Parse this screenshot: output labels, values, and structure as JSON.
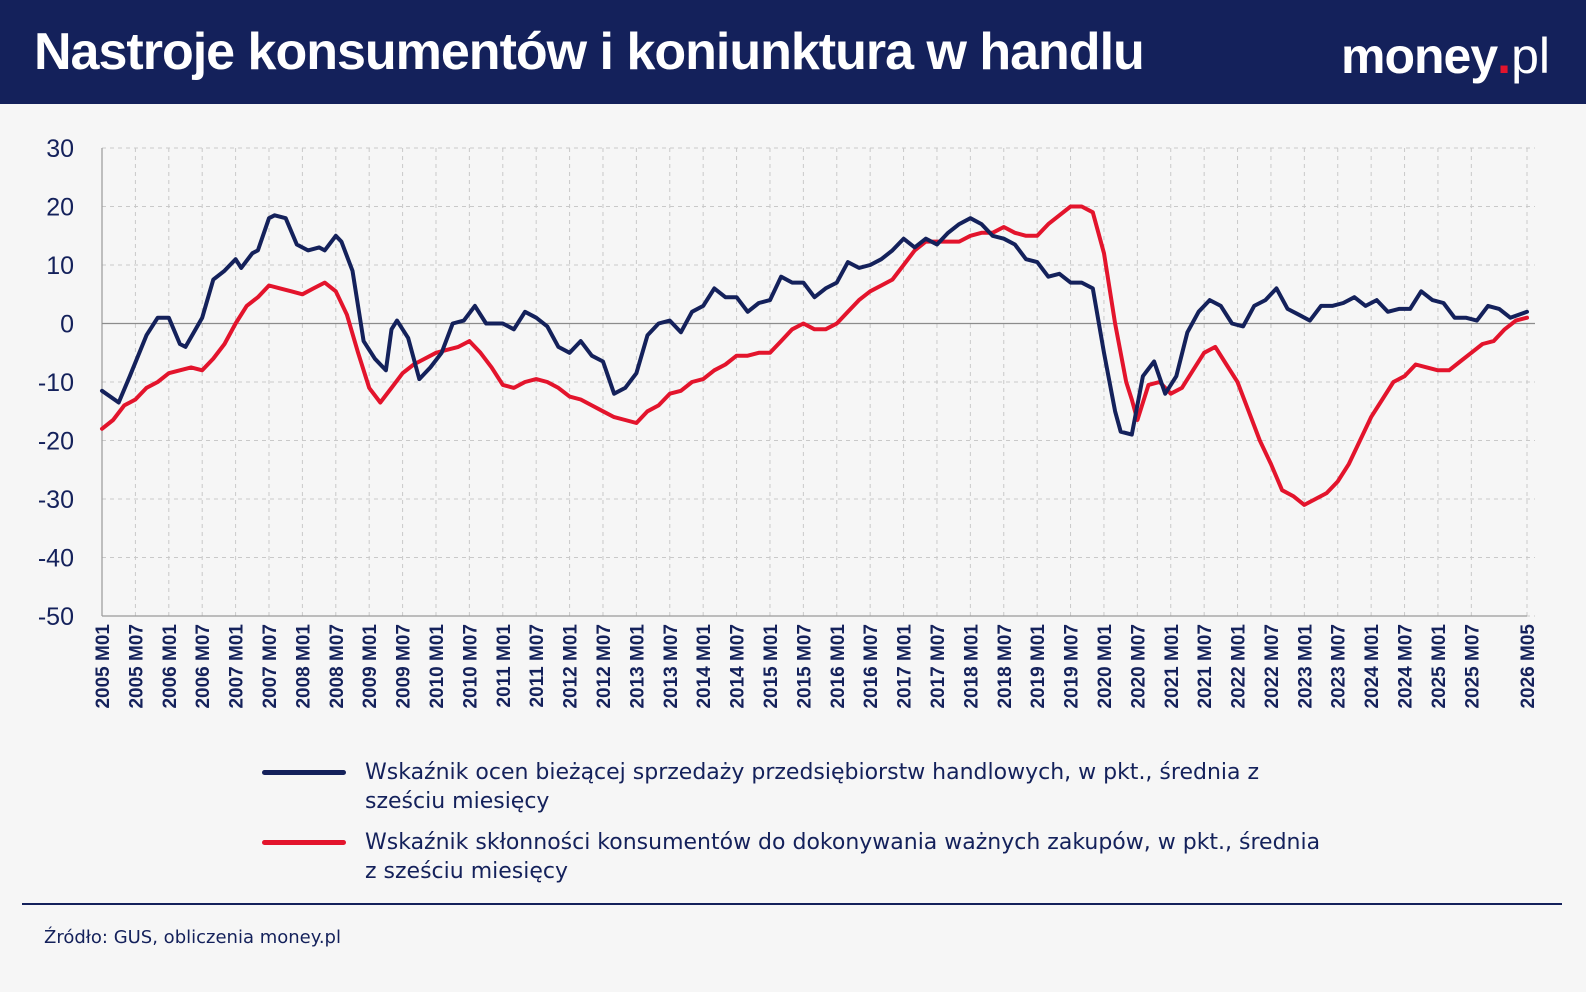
{
  "header": {
    "title": "Nastroje konsumentów i koniunktura w handlu",
    "logo": {
      "brand": "money",
      "dot": ".",
      "tld": "pl"
    }
  },
  "footer": {
    "source": "Źródło: GUS, obliczenia money.pl"
  },
  "colors": {
    "navy": "#14215b",
    "red": "#e3142c",
    "grid": "#c9c9c9",
    "background": "#f6f6f6"
  },
  "chart_data": {
    "type": "line",
    "title": "Nastroje konsumentów i koniunktura w handlu",
    "ylim": [
      -50,
      30
    ],
    "yticks": [
      30,
      20,
      10,
      0,
      -10,
      -20,
      -30,
      -40,
      -50
    ],
    "x_start": "2005-01",
    "x_end": "2026-05",
    "xtick_labels": [
      "2005 M01",
      "2005 M07",
      "2006 M01",
      "2006 M07",
      "2007 M01",
      "2007 M07",
      "2008 M01",
      "2008 M07",
      "2009 M01",
      "2009 M07",
      "2010 M01",
      "2010 M07",
      "2011 M01",
      "2011 M07",
      "2012 M01",
      "2012 M07",
      "2013 M01",
      "2013 M07",
      "2014 M01",
      "2014 M07",
      "2015 M01",
      "2015 M07",
      "2016 M01",
      "2016 M07",
      "2017 M01",
      "2017 M07",
      "2018 M01",
      "2018 M07",
      "2019 M01",
      "2019 M07",
      "2020 M01",
      "2020 M07",
      "2021 M01",
      "2021 M07",
      "2022 M01",
      "2022 M07",
      "2023 M01",
      "2023 M07",
      "2024 M01",
      "2024 M07",
      "2025 M01",
      "2025 M07",
      "2026 M05"
    ],
    "grid": true,
    "zero_line": true,
    "legend_position": "bottom",
    "series": [
      {
        "name": "Wskaźnik ocen bieżącej sprzedaży przedsiębiorstw handlowych, w pkt., średnia z sześciu miesięcy",
        "color": "#14215b",
        "points": [
          [
            "2005-01",
            -11.5
          ],
          [
            "2005-04",
            -13.5
          ],
          [
            "2005-06",
            -9
          ],
          [
            "2005-09",
            -2
          ],
          [
            "2005-11",
            1
          ],
          [
            "2006-01",
            1
          ],
          [
            "2006-03",
            -3.5
          ],
          [
            "2006-04",
            -4
          ],
          [
            "2006-07",
            1
          ],
          [
            "2006-09",
            7.5
          ],
          [
            "2006-11",
            9
          ],
          [
            "2007-01",
            11
          ],
          [
            "2007-02",
            9.5
          ],
          [
            "2007-04",
            12
          ],
          [
            "2007-05",
            12.5
          ],
          [
            "2007-07",
            18
          ],
          [
            "2007-08",
            18.5
          ],
          [
            "2007-10",
            18
          ],
          [
            "2007-12",
            13.5
          ],
          [
            "2008-02",
            12.5
          ],
          [
            "2008-04",
            13
          ],
          [
            "2008-05",
            12.5
          ],
          [
            "2008-07",
            15
          ],
          [
            "2008-08",
            14
          ],
          [
            "2008-10",
            9
          ],
          [
            "2008-12",
            -3
          ],
          [
            "2009-02",
            -6
          ],
          [
            "2009-04",
            -8
          ],
          [
            "2009-05",
            -1
          ],
          [
            "2009-06",
            0.5
          ],
          [
            "2009-08",
            -2.5
          ],
          [
            "2009-10",
            -9.5
          ],
          [
            "2009-12",
            -7.5
          ],
          [
            "2010-02",
            -5
          ],
          [
            "2010-04",
            0
          ],
          [
            "2010-06",
            0.5
          ],
          [
            "2010-08",
            3
          ],
          [
            "2010-10",
            0
          ],
          [
            "2011-01",
            0
          ],
          [
            "2011-03",
            -1
          ],
          [
            "2011-05",
            2
          ],
          [
            "2011-07",
            1
          ],
          [
            "2011-09",
            -0.5
          ],
          [
            "2011-11",
            -4
          ],
          [
            "2012-01",
            -5
          ],
          [
            "2012-03",
            -3
          ],
          [
            "2012-05",
            -5.5
          ],
          [
            "2012-07",
            -6.5
          ],
          [
            "2012-09",
            -12
          ],
          [
            "2012-11",
            -11
          ],
          [
            "2013-01",
            -8.5
          ],
          [
            "2013-03",
            -2
          ],
          [
            "2013-05",
            0
          ],
          [
            "2013-07",
            0.5
          ],
          [
            "2013-09",
            -1.5
          ],
          [
            "2013-11",
            2
          ],
          [
            "2014-01",
            3
          ],
          [
            "2014-03",
            6
          ],
          [
            "2014-05",
            4.5
          ],
          [
            "2014-07",
            4.5
          ],
          [
            "2014-09",
            2
          ],
          [
            "2014-11",
            3.5
          ],
          [
            "2015-01",
            4
          ],
          [
            "2015-03",
            8
          ],
          [
            "2015-05",
            7
          ],
          [
            "2015-07",
            7
          ],
          [
            "2015-09",
            4.5
          ],
          [
            "2015-11",
            6
          ],
          [
            "2016-01",
            7
          ],
          [
            "2016-03",
            10.5
          ],
          [
            "2016-05",
            9.5
          ],
          [
            "2016-07",
            10
          ],
          [
            "2016-09",
            11
          ],
          [
            "2016-11",
            12.5
          ],
          [
            "2017-01",
            14.5
          ],
          [
            "2017-03",
            13
          ],
          [
            "2017-05",
            14.5
          ],
          [
            "2017-07",
            13.5
          ],
          [
            "2017-09",
            15.5
          ],
          [
            "2017-11",
            17
          ],
          [
            "2018-01",
            18
          ],
          [
            "2018-03",
            17
          ],
          [
            "2018-05",
            15
          ],
          [
            "2018-07",
            14.5
          ],
          [
            "2018-09",
            13.5
          ],
          [
            "2018-11",
            11
          ],
          [
            "2019-01",
            10.5
          ],
          [
            "2019-03",
            8
          ],
          [
            "2019-05",
            8.5
          ],
          [
            "2019-07",
            7
          ],
          [
            "2019-09",
            7
          ],
          [
            "2019-11",
            6
          ],
          [
            "2020-01",
            -5
          ],
          [
            "2020-03",
            -15
          ],
          [
            "2020-04",
            -18.5
          ],
          [
            "2020-06",
            -19
          ],
          [
            "2020-08",
            -9
          ],
          [
            "2020-10",
            -6.5
          ],
          [
            "2020-12",
            -12
          ],
          [
            "2021-02",
            -9
          ],
          [
            "2021-04",
            -1.5
          ],
          [
            "2021-06",
            2
          ],
          [
            "2021-08",
            4
          ],
          [
            "2021-10",
            3
          ],
          [
            "2021-12",
            0
          ],
          [
            "2022-02",
            -0.5
          ],
          [
            "2022-04",
            3
          ],
          [
            "2022-06",
            4
          ],
          [
            "2022-08",
            6
          ],
          [
            "2022-10",
            2.5
          ],
          [
            "2022-12",
            1.5
          ],
          [
            "2023-02",
            0.5
          ],
          [
            "2023-04",
            3
          ],
          [
            "2023-06",
            3
          ],
          [
            "2023-08",
            3.5
          ],
          [
            "2023-10",
            4.5
          ],
          [
            "2023-12",
            3
          ],
          [
            "2024-02",
            4
          ],
          [
            "2024-04",
            2
          ],
          [
            "2024-06",
            2.5
          ],
          [
            "2024-08",
            2.5
          ],
          [
            "2024-10",
            5.5
          ],
          [
            "2024-12",
            4
          ],
          [
            "2025-02",
            3.5
          ],
          [
            "2025-04",
            1
          ],
          [
            "2025-06",
            1
          ],
          [
            "2025-08",
            0.5
          ],
          [
            "2025-10",
            3
          ],
          [
            "2025-12",
            2.5
          ],
          [
            "2026-02",
            1
          ],
          [
            "2026-05",
            2
          ]
        ]
      },
      {
        "name": "Wskaźnik skłonności konsumentów do dokonywania ważnych zakupów, w pkt., średnia z sześciu miesięcy",
        "color": "#e3142c",
        "points": [
          [
            "2005-01",
            -18
          ],
          [
            "2005-03",
            -16.5
          ],
          [
            "2005-05",
            -14
          ],
          [
            "2005-07",
            -13
          ],
          [
            "2005-09",
            -11
          ],
          [
            "2005-11",
            -10
          ],
          [
            "2006-01",
            -8.5
          ],
          [
            "2006-03",
            -8
          ],
          [
            "2006-05",
            -7.5
          ],
          [
            "2006-07",
            -8
          ],
          [
            "2006-09",
            -6
          ],
          [
            "2006-11",
            -3.5
          ],
          [
            "2007-01",
            0
          ],
          [
            "2007-03",
            3
          ],
          [
            "2007-05",
            4.5
          ],
          [
            "2007-07",
            6.5
          ],
          [
            "2007-09",
            6
          ],
          [
            "2007-11",
            5.5
          ],
          [
            "2008-01",
            5
          ],
          [
            "2008-03",
            6
          ],
          [
            "2008-05",
            7
          ],
          [
            "2008-07",
            5.5
          ],
          [
            "2008-09",
            1.5
          ],
          [
            "2008-11",
            -5
          ],
          [
            "2009-01",
            -11
          ],
          [
            "2009-03",
            -13.5
          ],
          [
            "2009-05",
            -11
          ],
          [
            "2009-07",
            -8.5
          ],
          [
            "2009-09",
            -7
          ],
          [
            "2009-11",
            -6
          ],
          [
            "2010-01",
            -5
          ],
          [
            "2010-03",
            -4.5
          ],
          [
            "2010-05",
            -4
          ],
          [
            "2010-07",
            -3
          ],
          [
            "2010-09",
            -5
          ],
          [
            "2010-11",
            -7.5
          ],
          [
            "2011-01",
            -10.5
          ],
          [
            "2011-03",
            -11
          ],
          [
            "2011-05",
            -10
          ],
          [
            "2011-07",
            -9.5
          ],
          [
            "2011-09",
            -10
          ],
          [
            "2011-11",
            -11
          ],
          [
            "2012-01",
            -12.5
          ],
          [
            "2012-03",
            -13
          ],
          [
            "2012-05",
            -14
          ],
          [
            "2012-07",
            -15
          ],
          [
            "2012-09",
            -16
          ],
          [
            "2012-11",
            -16.5
          ],
          [
            "2013-01",
            -17
          ],
          [
            "2013-03",
            -15
          ],
          [
            "2013-05",
            -14
          ],
          [
            "2013-07",
            -12
          ],
          [
            "2013-09",
            -11.5
          ],
          [
            "2013-11",
            -10
          ],
          [
            "2014-01",
            -9.5
          ],
          [
            "2014-03",
            -8
          ],
          [
            "2014-05",
            -7
          ],
          [
            "2014-07",
            -5.5
          ],
          [
            "2014-09",
            -5.5
          ],
          [
            "2014-11",
            -5
          ],
          [
            "2015-01",
            -5
          ],
          [
            "2015-03",
            -3
          ],
          [
            "2015-05",
            -1
          ],
          [
            "2015-07",
            0
          ],
          [
            "2015-09",
            -1
          ],
          [
            "2015-11",
            -1
          ],
          [
            "2016-01",
            0
          ],
          [
            "2016-03",
            2
          ],
          [
            "2016-05",
            4
          ],
          [
            "2016-07",
            5.5
          ],
          [
            "2016-09",
            6.5
          ],
          [
            "2016-11",
            7.5
          ],
          [
            "2017-01",
            10
          ],
          [
            "2017-03",
            12.5
          ],
          [
            "2017-05",
            14
          ],
          [
            "2017-07",
            14
          ],
          [
            "2017-09",
            14
          ],
          [
            "2017-11",
            14
          ],
          [
            "2018-01",
            15
          ],
          [
            "2018-03",
            15.5
          ],
          [
            "2018-05",
            15.5
          ],
          [
            "2018-07",
            16.5
          ],
          [
            "2018-09",
            15.5
          ],
          [
            "2018-11",
            15
          ],
          [
            "2019-01",
            15
          ],
          [
            "2019-03",
            17
          ],
          [
            "2019-05",
            18.5
          ],
          [
            "2019-07",
            20
          ],
          [
            "2019-09",
            20
          ],
          [
            "2019-11",
            19
          ],
          [
            "2020-01",
            12
          ],
          [
            "2020-03",
            0
          ],
          [
            "2020-05",
            -10
          ],
          [
            "2020-06",
            -13
          ],
          [
            "2020-07",
            -16.5
          ],
          [
            "2020-09",
            -10.5
          ],
          [
            "2020-11",
            -10
          ],
          [
            "2021-01",
            -12
          ],
          [
            "2021-03",
            -11
          ],
          [
            "2021-05",
            -8
          ],
          [
            "2021-07",
            -5
          ],
          [
            "2021-09",
            -4
          ],
          [
            "2021-11",
            -7
          ],
          [
            "2022-01",
            -10
          ],
          [
            "2022-03",
            -15
          ],
          [
            "2022-05",
            -20
          ],
          [
            "2022-07",
            -24
          ],
          [
            "2022-09",
            -28.5
          ],
          [
            "2022-11",
            -29.5
          ],
          [
            "2023-01",
            -31
          ],
          [
            "2023-03",
            -30
          ],
          [
            "2023-05",
            -29
          ],
          [
            "2023-07",
            -27
          ],
          [
            "2023-09",
            -24
          ],
          [
            "2023-11",
            -20
          ],
          [
            "2024-01",
            -16
          ],
          [
            "2024-03",
            -13
          ],
          [
            "2024-05",
            -10
          ],
          [
            "2024-07",
            -9
          ],
          [
            "2024-09",
            -7
          ],
          [
            "2024-11",
            -7.5
          ],
          [
            "2025-01",
            -8
          ],
          [
            "2025-03",
            -8
          ],
          [
            "2025-05",
            -6.5
          ],
          [
            "2025-07",
            -5
          ],
          [
            "2025-09",
            -3.5
          ],
          [
            "2025-11",
            -3
          ],
          [
            "2026-01",
            -1
          ],
          [
            "2026-03",
            0.5
          ],
          [
            "2026-05",
            1
          ]
        ]
      }
    ]
  }
}
